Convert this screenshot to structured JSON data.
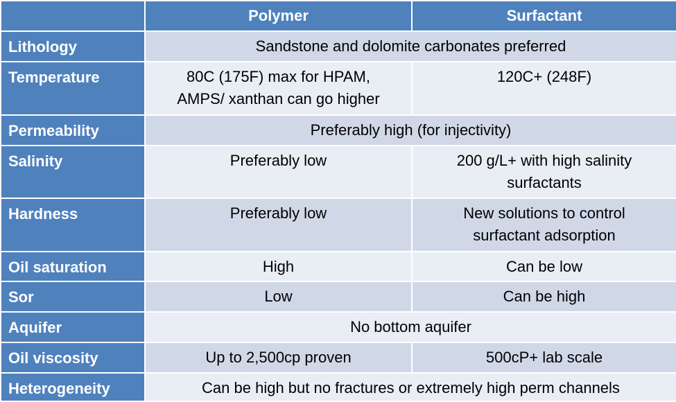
{
  "headers": [
    "",
    "Polymer",
    "Surfactant"
  ],
  "rows": [
    {
      "label": "Lithology",
      "merged": true,
      "text": [
        "Sandstone and dolomite carbonates preferred"
      ]
    },
    {
      "label": "Temperature",
      "polymer": [
        "80C (175F) max for HPAM,",
        "AMPS/ xanthan can go higher"
      ],
      "surfactant": [
        "120C+ (248F)"
      ]
    },
    {
      "label": "Permeability",
      "merged": true,
      "text": [
        "Preferably high (for injectivity)"
      ]
    },
    {
      "label": "Salinity",
      "polymer": [
        "Preferably low"
      ],
      "surfactant": [
        "200 g/L+ with high salinity",
        "surfactants"
      ]
    },
    {
      "label": "Hardness",
      "polymer": [
        "Preferably low"
      ],
      "surfactant": [
        "New solutions to control",
        "surfactant adsorption"
      ]
    },
    {
      "label": "Oil saturation",
      "polymer": [
        "High"
      ],
      "surfactant": [
        "Can be low"
      ]
    },
    {
      "label": "Sor",
      "polymer": [
        "Low"
      ],
      "surfactant": [
        "Can be high"
      ]
    },
    {
      "label": "Aquifer",
      "merged": true,
      "text": [
        "No bottom aquifer"
      ]
    },
    {
      "label": "Oil viscosity",
      "polymer": [
        "Up to 2,500cp proven"
      ],
      "surfactant": [
        "500cP+ lab scale"
      ]
    },
    {
      "label": "Heterogeneity",
      "merged": true,
      "text": [
        "Can be high but no fractures or extremely high perm channels"
      ]
    }
  ]
}
